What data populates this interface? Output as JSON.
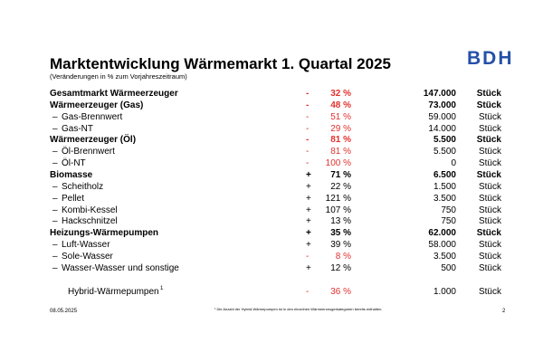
{
  "header": {
    "title": "Marktentwicklung Wärmemarkt 1. Quartal 2025",
    "subtitle": "(Veränderungen in % zum Vorjahreszeitraum)",
    "logo": "BDH"
  },
  "table": {
    "rows": [
      {
        "name": "Gesamtmarkt Wärmeerzeuger",
        "sign": "-",
        "change": "32 %",
        "count": "147.000",
        "unit": "Stück",
        "bold": true
      },
      {
        "name": "Wärmeerzeuger (Gas)",
        "sign": "-",
        "change": "48 %",
        "count": "73.000",
        "unit": "Stück",
        "bold": true
      },
      {
        "dash": "–",
        "name": "Gas-Brennwert",
        "sign": "-",
        "change": "51 %",
        "count": "59.000",
        "unit": "Stück"
      },
      {
        "dash": "–",
        "name": "Gas-NT",
        "sign": "-",
        "change": "29 %",
        "count": "14.000",
        "unit": "Stück"
      },
      {
        "name": "Wärmeerzeuger (Öl)",
        "sign": "-",
        "change": "81 %",
        "count": "5.500",
        "unit": "Stück",
        "bold": true
      },
      {
        "dash": "–",
        "name": "Öl-Brennwert",
        "sign": "-",
        "change": "81 %",
        "count": "5.500",
        "unit": "Stück"
      },
      {
        "dash": "–",
        "name": "Öl-NT",
        "sign": "-",
        "change": "100 %",
        "count": "0",
        "unit": "Stück"
      },
      {
        "name": "Biomasse",
        "sign": "+",
        "change": "71 %",
        "count": "6.500",
        "unit": "Stück",
        "bold": true
      },
      {
        "dash": "–",
        "name": "Scheitholz",
        "sign": "+",
        "change": "22 %",
        "count": "1.500",
        "unit": "Stück"
      },
      {
        "dash": "–",
        "name": "Pellet",
        "sign": "+",
        "change": "121 %",
        "count": "3.500",
        "unit": "Stück"
      },
      {
        "dash": "–",
        "name": "Kombi-Kessel",
        "sign": "+",
        "change": "107 %",
        "count": "750",
        "unit": "Stück"
      },
      {
        "dash": "–",
        "name": "Hackschnitzel",
        "sign": "+",
        "change": "13 %",
        "count": "750",
        "unit": "Stück"
      },
      {
        "name": "Heizungs-Wärmepumpen",
        "sign": "+",
        "change": "35 %",
        "count": "62.000",
        "unit": "Stück",
        "bold": true
      },
      {
        "dash": "–",
        "name": "Luft-Wasser",
        "sign": "+",
        "change": "39 %",
        "count": "58.000",
        "unit": "Stück"
      },
      {
        "dash": "–",
        "name": "Sole-Wasser",
        "sign": "-",
        "change": "8 %",
        "count": "3.500",
        "unit": "Stück"
      },
      {
        "dash": "–",
        "name": "Wasser-Wasser und sonstige",
        "sign": "+",
        "change": "12 %",
        "count": "500",
        "unit": "Stück"
      }
    ],
    "hybrid": {
      "name": "Hybrid-Wärmepumpen",
      "footnote_mark": "1",
      "sign": "-",
      "change": "36 %",
      "count": "1.000",
      "unit": "Stück"
    }
  },
  "footer": {
    "date": "08.05.2025",
    "footnote": "¹ Die Anzahl der Hybrid-Wärmepumpen ist in den einzelnen Wärmeerzeugerkategorien bereits enthalten.",
    "page": "2"
  }
}
